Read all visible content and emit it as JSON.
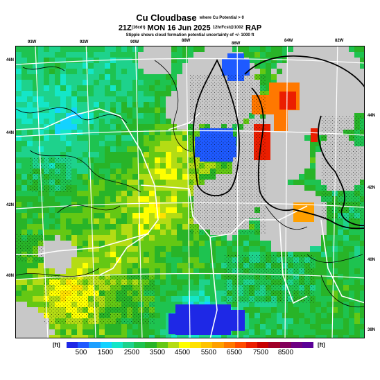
{
  "title": {
    "main": "Cu Cloudbase",
    "main_note": "where Cu Potential > 0",
    "valid": "21Z",
    "valid_local": "(16cdt)",
    "date": "MON 16 Jun 2025",
    "forecast": "12hrFcst@1002",
    "model": "RAP",
    "note": "Stipple shows cloud formation potential uncertainty of +/- 1000 ft"
  },
  "map": {
    "top_lon_labels": [
      "93W",
      "92W",
      "90W",
      "88W",
      "86W",
      "84W",
      "82W"
    ],
    "left_lat_labels": [
      "46N",
      "44N",
      "42N",
      "40N"
    ],
    "right_lat_labels": [
      "44N",
      "42N",
      "40N",
      "38N"
    ],
    "no_data_color": "#c8c8c8"
  },
  "legend": {
    "unit_left": "[ft]",
    "unit_right": "[ft]",
    "ticks": [
      "500",
      "1500",
      "2500",
      "3500",
      "4500",
      "5500",
      "6500",
      "7500",
      "8500"
    ],
    "colors": [
      "#1e28e6",
      "#1e5aff",
      "#1ea0ff",
      "#14d2ff",
      "#14e6c8",
      "#1ed28c",
      "#1ec350",
      "#28b428",
      "#64c814",
      "#b4dc14",
      "#ffff00",
      "#ffe100",
      "#ffc300",
      "#ffa000",
      "#ff7800",
      "#ff4b00",
      "#eb1e00",
      "#c80000",
      "#a00028",
      "#82005a",
      "#6e0082",
      "#5a0096"
    ]
  }
}
